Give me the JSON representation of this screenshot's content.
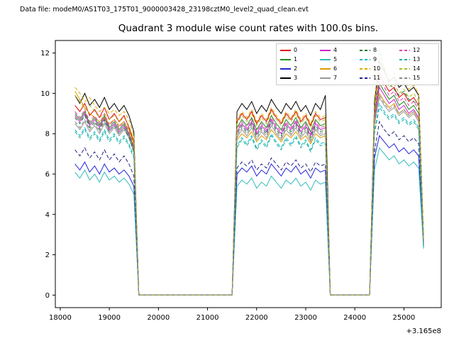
{
  "header": {
    "text": "Data file: modeM0/AS1T03_175T01_9000003428_23198cztM0_level2_quad_clean.evt"
  },
  "chart_data": {
    "type": "line",
    "title": "Quadrant 3 module wise count rates with 100.0s bins.",
    "xlabel": "",
    "ylabel": "",
    "x_offset_label": "+3.165e8",
    "legend_position": "upper right",
    "grid": false,
    "x_start": 18300,
    "x_step": 100,
    "xlim": [
      17900,
      25760
    ],
    "ylim": [
      -0.62,
      12.62
    ],
    "x_ticks": [
      18000,
      19000,
      20000,
      21000,
      22000,
      23000,
      24000,
      25000
    ],
    "y_ticks": [
      0,
      2,
      4,
      6,
      8,
      10,
      12
    ],
    "series": [
      {
        "name": "0",
        "color": "#e00000",
        "dash": false,
        "values": [
          9.4,
          9.1,
          9.5,
          8.9,
          9.2,
          8.8,
          9.3,
          8.7,
          9.0,
          8.6,
          8.9,
          8.3,
          7.6,
          0,
          0,
          0,
          0,
          0,
          0,
          0,
          0,
          0,
          0,
          0,
          0,
          0,
          0,
          0,
          0,
          0,
          0,
          0,
          0,
          8.6,
          9.0,
          8.7,
          9.1,
          8.5,
          8.9,
          8.6,
          9.2,
          8.8,
          8.5,
          9.0,
          8.7,
          9.1,
          8.6,
          8.9,
          8.4,
          9.0,
          8.7,
          8.8,
          0,
          0,
          0,
          0,
          0,
          0,
          0,
          0,
          0,
          9.2,
          11.0,
          10.5,
          10.1,
          10.3,
          9.8,
          10.0,
          9.6,
          9.8,
          9.4,
          2.7
        ]
      },
      {
        "name": "1",
        "color": "#1e8c1e",
        "dash": false,
        "values": [
          9.0,
          8.7,
          9.1,
          8.5,
          8.8,
          8.4,
          8.9,
          8.3,
          8.6,
          8.2,
          8.5,
          8.0,
          7.3,
          0,
          0,
          0,
          0,
          0,
          0,
          0,
          0,
          0,
          0,
          0,
          0,
          0,
          0,
          0,
          0,
          0,
          0,
          0,
          0,
          8.3,
          8.7,
          8.4,
          8.8,
          8.2,
          8.6,
          8.3,
          8.9,
          8.5,
          8.2,
          8.7,
          8.4,
          8.8,
          8.3,
          8.6,
          8.1,
          8.7,
          8.4,
          8.5,
          0,
          0,
          0,
          0,
          0,
          0,
          0,
          0,
          0,
          8.9,
          10.5,
          10.1,
          9.7,
          9.9,
          9.4,
          9.6,
          9.2,
          9.4,
          9.0,
          2.6
        ]
      },
      {
        "name": "2",
        "color": "#2222dd",
        "dash": false,
        "values": [
          6.5,
          6.2,
          6.6,
          6.1,
          6.4,
          6.0,
          6.5,
          6.1,
          6.3,
          6.0,
          6.2,
          5.9,
          5.4,
          0,
          0,
          0,
          0,
          0,
          0,
          0,
          0,
          0,
          0,
          0,
          0,
          0,
          0,
          0,
          0,
          0,
          0,
          0,
          0,
          6.0,
          6.3,
          6.1,
          6.4,
          5.9,
          6.2,
          6.0,
          6.5,
          6.2,
          5.9,
          6.3,
          6.1,
          6.4,
          6.0,
          6.2,
          5.8,
          6.3,
          6.1,
          6.2,
          0,
          0,
          0,
          0,
          0,
          0,
          0,
          0,
          0,
          6.8,
          7.9,
          7.6,
          7.3,
          7.5,
          7.1,
          7.3,
          7.0,
          7.2,
          6.9,
          2.4
        ]
      },
      {
        "name": "3",
        "color": "#000000",
        "dash": false,
        "values": [
          9.9,
          9.5,
          10.0,
          9.4,
          9.7,
          9.3,
          9.8,
          9.2,
          9.5,
          9.1,
          9.4,
          8.9,
          8.1,
          0,
          0,
          0,
          0,
          0,
          0,
          0,
          0,
          0,
          0,
          0,
          0,
          0,
          0,
          0,
          0,
          0,
          0,
          0,
          0,
          9.1,
          9.5,
          9.2,
          9.6,
          9.0,
          9.4,
          9.1,
          9.7,
          9.3,
          9.0,
          9.5,
          9.2,
          9.6,
          9.1,
          9.4,
          8.9,
          9.5,
          9.2,
          9.9,
          0,
          0,
          0,
          0,
          0,
          0,
          0,
          0,
          0,
          9.6,
          11.6,
          11.1,
          10.6,
          10.8,
          10.3,
          10.5,
          10.1,
          10.3,
          9.9,
          2.8
        ]
      },
      {
        "name": "4",
        "color": "#cc22cc",
        "dash": false,
        "values": [
          8.9,
          8.6,
          9.0,
          8.4,
          8.7,
          8.3,
          8.8,
          8.2,
          8.5,
          8.1,
          8.4,
          7.9,
          7.2,
          0,
          0,
          0,
          0,
          0,
          0,
          0,
          0,
          0,
          0,
          0,
          0,
          0,
          0,
          0,
          0,
          0,
          0,
          0,
          0,
          8.1,
          8.5,
          8.2,
          8.6,
          8.0,
          8.4,
          8.1,
          8.7,
          8.3,
          8.0,
          8.5,
          8.2,
          8.6,
          8.1,
          8.4,
          7.9,
          8.5,
          8.2,
          8.3,
          0,
          0,
          0,
          0,
          0,
          0,
          0,
          0,
          0,
          8.7,
          10.3,
          9.9,
          9.5,
          9.7,
          9.2,
          9.4,
          9.0,
          9.2,
          8.8,
          2.5
        ]
      },
      {
        "name": "5",
        "color": "#33bbbb",
        "dash": false,
        "values": [
          6.1,
          5.8,
          6.2,
          5.7,
          6.0,
          5.6,
          6.1,
          5.7,
          5.9,
          5.6,
          5.8,
          5.5,
          5.0,
          0,
          0,
          0,
          0,
          0,
          0,
          0,
          0,
          0,
          0,
          0,
          0,
          0,
          0,
          0,
          0,
          0,
          0,
          0,
          0,
          5.4,
          5.7,
          5.5,
          5.8,
          5.3,
          5.6,
          5.4,
          5.9,
          5.6,
          5.3,
          5.7,
          5.5,
          5.8,
          5.4,
          5.6,
          5.2,
          5.7,
          5.5,
          5.6,
          0,
          0,
          0,
          0,
          0,
          0,
          0,
          0,
          0,
          6.2,
          7.3,
          7.0,
          6.7,
          6.9,
          6.5,
          6.7,
          6.4,
          6.6,
          6.3,
          2.3
        ]
      },
      {
        "name": "6",
        "color": "#dd9900",
        "dash": false,
        "values": [
          10.1,
          9.7,
          9.3,
          9.0,
          8.8,
          8.6,
          8.8,
          8.5,
          8.7,
          8.4,
          8.6,
          8.2,
          7.5,
          0,
          0,
          0,
          0,
          0,
          0,
          0,
          0,
          0,
          0,
          0,
          0,
          0,
          0,
          0,
          0,
          0,
          0,
          0,
          0,
          7.7,
          8.0,
          7.8,
          8.1,
          7.6,
          7.9,
          7.7,
          8.2,
          7.9,
          7.6,
          8.0,
          7.8,
          8.1,
          7.7,
          7.9,
          7.5,
          8.0,
          7.8,
          7.9,
          0,
          0,
          0,
          0,
          0,
          0,
          0,
          0,
          0,
          8.4,
          10.0,
          9.6,
          9.3,
          9.5,
          9.0,
          9.2,
          8.9,
          9.1,
          8.7,
          2.5
        ]
      },
      {
        "name": "7",
        "color": "#999999",
        "dash": false,
        "values": [
          8.5,
          8.2,
          8.6,
          8.1,
          8.4,
          8.0,
          8.5,
          8.0,
          8.3,
          7.9,
          8.2,
          7.8,
          7.1,
          0,
          0,
          0,
          0,
          0,
          0,
          0,
          0,
          0,
          0,
          0,
          0,
          0,
          0,
          0,
          0,
          0,
          0,
          0,
          0,
          7.8,
          8.2,
          7.9,
          8.3,
          7.7,
          8.1,
          7.8,
          8.4,
          8.0,
          7.7,
          8.2,
          7.9,
          8.3,
          7.8,
          8.1,
          7.6,
          8.2,
          7.9,
          8.0,
          0,
          0,
          0,
          0,
          0,
          0,
          0,
          0,
          0,
          8.5,
          9.8,
          9.4,
          9.1,
          9.3,
          8.9,
          9.1,
          8.8,
          9.0,
          8.6,
          2.5
        ]
      },
      {
        "name": "8",
        "color": "#117733",
        "dash": true,
        "values": [
          8.8,
          8.5,
          8.9,
          8.3,
          8.6,
          8.2,
          8.7,
          8.1,
          8.4,
          8.0,
          8.3,
          7.8,
          7.1,
          0,
          0,
          0,
          0,
          0,
          0,
          0,
          0,
          0,
          0,
          0,
          0,
          0,
          0,
          0,
          0,
          0,
          0,
          0,
          0,
          8.0,
          8.4,
          8.1,
          8.5,
          7.9,
          8.3,
          8.0,
          8.6,
          8.2,
          7.9,
          8.4,
          8.1,
          8.5,
          8.0,
          8.3,
          7.8,
          8.4,
          8.1,
          8.2,
          0,
          0,
          0,
          0,
          0,
          0,
          0,
          0,
          0,
          9.0,
          12.2,
          11.2,
          10.5,
          10.2,
          9.9,
          10.1,
          9.7,
          9.6,
          9.4,
          2.7
        ]
      },
      {
        "name": "9",
        "color": "#00bbcc",
        "dash": true,
        "values": [
          8.2,
          7.9,
          8.3,
          7.8,
          8.1,
          7.7,
          8.2,
          7.7,
          8.0,
          7.6,
          7.9,
          7.5,
          6.9,
          0,
          0,
          0,
          0,
          0,
          0,
          0,
          0,
          0,
          0,
          0,
          0,
          0,
          0,
          0,
          0,
          0,
          0,
          0,
          0,
          7.4,
          7.8,
          7.5,
          7.9,
          7.3,
          7.7,
          7.4,
          8.0,
          7.6,
          7.3,
          7.8,
          7.5,
          7.9,
          7.4,
          7.7,
          7.2,
          7.8,
          7.5,
          7.6,
          0,
          0,
          0,
          0,
          0,
          0,
          0,
          0,
          0,
          8.1,
          9.5,
          9.1,
          8.8,
          9.0,
          8.6,
          8.8,
          8.5,
          8.7,
          8.3,
          2.4
        ]
      },
      {
        "name": "10",
        "color": "#ddaa00",
        "dash": true,
        "values": [
          10.3,
          10.0,
          9.6,
          9.8,
          9.4,
          9.1,
          9.3,
          9.0,
          9.2,
          8.9,
          9.1,
          8.7,
          7.9,
          0,
          0,
          0,
          0,
          0,
          0,
          0,
          0,
          0,
          0,
          0,
          0,
          0,
          0,
          0,
          0,
          0,
          0,
          0,
          0,
          8.7,
          9.1,
          8.8,
          9.2,
          8.6,
          9.0,
          8.7,
          9.3,
          8.9,
          8.6,
          9.1,
          8.8,
          9.2,
          8.7,
          9.0,
          8.5,
          9.1,
          8.8,
          8.9,
          0,
          0,
          0,
          0,
          0,
          0,
          0,
          0,
          0,
          9.4,
          11.8,
          11.3,
          10.8,
          11.0,
          10.4,
          10.6,
          10.2,
          10.4,
          10.0,
          2.8
        ]
      },
      {
        "name": "11",
        "color": "#222288",
        "dash": true,
        "values": [
          7.2,
          6.9,
          7.3,
          6.8,
          7.1,
          6.7,
          7.2,
          6.7,
          7.0,
          6.6,
          6.9,
          6.5,
          5.9,
          0,
          0,
          0,
          0,
          0,
          0,
          0,
          0,
          0,
          0,
          0,
          0,
          0,
          0,
          0,
          0,
          0,
          0,
          0,
          0,
          6.3,
          6.6,
          6.4,
          6.7,
          6.2,
          6.5,
          6.3,
          6.8,
          6.5,
          6.2,
          6.6,
          6.4,
          6.7,
          6.3,
          6.5,
          6.1,
          6.6,
          6.4,
          6.5,
          0,
          0,
          0,
          0,
          0,
          0,
          0,
          0,
          0,
          7.1,
          8.6,
          8.2,
          7.9,
          8.1,
          7.7,
          7.9,
          7.6,
          7.8,
          7.5,
          2.4
        ]
      },
      {
        "name": "12",
        "color": "#dd44aa",
        "dash": true,
        "values": [
          9.1,
          8.8,
          9.2,
          8.6,
          8.9,
          8.5,
          9.0,
          8.4,
          8.7,
          8.3,
          8.6,
          8.1,
          7.4,
          0,
          0,
          0,
          0,
          0,
          0,
          0,
          0,
          0,
          0,
          0,
          0,
          0,
          0,
          0,
          0,
          0,
          0,
          0,
          0,
          8.2,
          8.6,
          8.3,
          8.7,
          8.1,
          8.5,
          8.2,
          8.8,
          8.4,
          8.1,
          8.6,
          8.3,
          8.7,
          8.2,
          8.5,
          8.0,
          8.6,
          8.3,
          8.4,
          0,
          0,
          0,
          0,
          0,
          0,
          0,
          0,
          0,
          8.9,
          10.8,
          10.3,
          9.9,
          10.1,
          9.6,
          9.8,
          9.4,
          9.6,
          9.2,
          2.6
        ]
      },
      {
        "name": "13",
        "color": "#22aa99",
        "dash": true,
        "values": [
          8.1,
          7.8,
          8.2,
          7.7,
          8.0,
          7.6,
          8.1,
          7.6,
          7.9,
          7.5,
          7.8,
          7.4,
          6.8,
          0,
          0,
          0,
          0,
          0,
          0,
          0,
          0,
          0,
          0,
          0,
          0,
          0,
          0,
          0,
          0,
          0,
          0,
          0,
          0,
          7.3,
          7.7,
          7.4,
          7.8,
          7.2,
          7.6,
          7.3,
          7.9,
          7.5,
          7.2,
          7.7,
          7.4,
          7.8,
          7.3,
          7.6,
          7.1,
          7.7,
          7.4,
          7.5,
          0,
          0,
          0,
          0,
          0,
          0,
          0,
          0,
          0,
          8.0,
          9.3,
          9.0,
          8.7,
          8.9,
          8.5,
          8.7,
          8.4,
          8.6,
          8.2,
          2.4
        ]
      },
      {
        "name": "14",
        "color": "#aabb22",
        "dash": true,
        "values": [
          9.9,
          9.6,
          9.2,
          9.4,
          9.1,
          8.8,
          9.0,
          8.7,
          8.9,
          8.6,
          8.8,
          8.4,
          7.7,
          0,
          0,
          0,
          0,
          0,
          0,
          0,
          0,
          0,
          0,
          0,
          0,
          0,
          0,
          0,
          0,
          0,
          0,
          0,
          0,
          8.5,
          8.9,
          8.6,
          9.0,
          8.4,
          8.8,
          8.5,
          9.1,
          8.7,
          8.4,
          8.9,
          8.6,
          9.0,
          8.5,
          8.8,
          8.3,
          8.9,
          8.6,
          8.7,
          0,
          0,
          0,
          0,
          0,
          0,
          0,
          0,
          0,
          9.2,
          11.2,
          10.7,
          10.3,
          10.5,
          10.0,
          10.2,
          9.8,
          10.0,
          9.6,
          2.7
        ]
      },
      {
        "name": "15",
        "color": "#888888",
        "dash": true,
        "values": [
          8.6,
          8.3,
          8.7,
          8.2,
          8.5,
          8.1,
          8.6,
          8.1,
          8.4,
          8.0,
          8.3,
          7.9,
          7.2,
          0,
          0,
          0,
          0,
          0,
          0,
          0,
          0,
          0,
          0,
          0,
          0,
          0,
          0,
          0,
          0,
          0,
          0,
          0,
          0,
          7.9,
          8.3,
          8.0,
          8.4,
          7.8,
          8.2,
          7.9,
          8.5,
          8.1,
          7.8,
          8.3,
          8.0,
          8.4,
          7.9,
          8.2,
          7.7,
          8.3,
          8.0,
          8.1,
          0,
          0,
          0,
          0,
          0,
          0,
          0,
          0,
          0,
          8.6,
          9.9,
          9.5,
          9.2,
          9.4,
          9.0,
          9.2,
          8.9,
          9.1,
          8.7,
          2.5
        ]
      }
    ]
  }
}
